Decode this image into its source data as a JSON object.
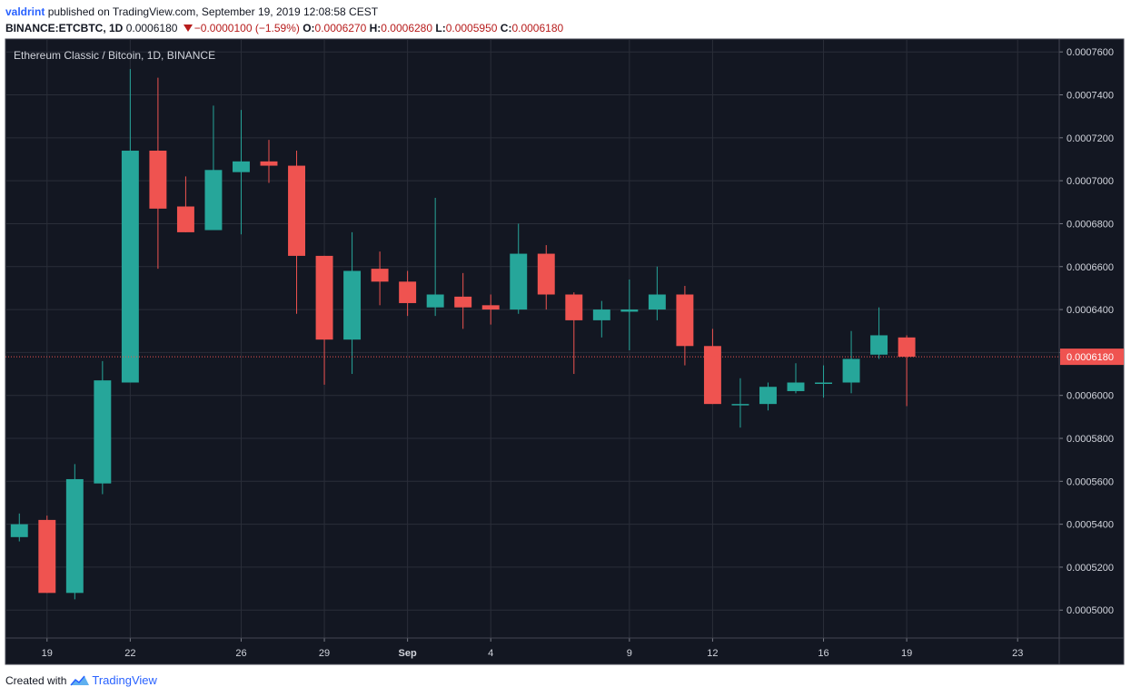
{
  "header": {
    "user": "valdrint",
    "published_text": "published on TradingView.com, September 19, 2019 12:08:58 CEST",
    "symbol": "BINANCE:ETCBTC, 1D",
    "last_price": "0.0006180",
    "change": "−0.0000100 (−1.59%)",
    "o_label": "O:",
    "o_value": "0.0006270",
    "h_label": "H:",
    "h_value": "0.0006280",
    "l_label": "L:",
    "l_value": "0.0005950",
    "c_label": "C:",
    "c_value": "0.0006180"
  },
  "footer": {
    "created_with": "Created with",
    "brand": "TradingView"
  },
  "chart_data": {
    "type": "candlestick",
    "title": "Ethereum Classic / Bitcoin, 1D, BINANCE",
    "colors": {
      "background": "#131722",
      "grid": "#2a2e39",
      "up": "#26a69a",
      "down": "#ef5350",
      "text": "#d1d4dc",
      "price_line": "#ef5350"
    },
    "ylim": [
      0.000487,
      0.000766
    ],
    "y_ticks": [
      "0.0005000",
      "0.0005200",
      "0.0005400",
      "0.0005600",
      "0.0005800",
      "0.0006000",
      "0.0006200",
      "0.0006400",
      "0.0006600",
      "0.0006800",
      "0.0007000",
      "0.0007200",
      "0.0007400",
      "0.0007600"
    ],
    "y_tick_values": [
      0.0005,
      0.00052,
      0.00054,
      0.00056,
      0.00058,
      0.0006,
      0.00062,
      0.00064,
      0.00066,
      0.00068,
      0.0007,
      0.00072,
      0.00074,
      0.00076
    ],
    "x_ticks": [
      {
        "label": "19",
        "date": "2019-08-19"
      },
      {
        "label": "22",
        "date": "2019-08-22"
      },
      {
        "label": "26",
        "date": "2019-08-26"
      },
      {
        "label": "29",
        "date": "2019-08-29"
      },
      {
        "label": "Sep",
        "date": "2019-09-01"
      },
      {
        "label": "4",
        "date": "2019-09-04"
      },
      {
        "label": "9",
        "date": "2019-09-09"
      },
      {
        "label": "12",
        "date": "2019-09-12"
      },
      {
        "label": "16",
        "date": "2019-09-16"
      },
      {
        "label": "19",
        "date": "2019-09-19"
      },
      {
        "label": "23",
        "date": "2019-09-23"
      }
    ],
    "x_range": [
      "2019-08-18",
      "2019-09-24"
    ],
    "current_price": 0.000618,
    "current_price_label": "0.0006180",
    "candles": [
      {
        "date": "2019-08-18",
        "open": 0.000534,
        "high": 0.000545,
        "low": 0.000532,
        "close": 0.00054
      },
      {
        "date": "2019-08-19",
        "open": 0.000542,
        "high": 0.000544,
        "low": 0.000508,
        "close": 0.000508
      },
      {
        "date": "2019-08-20",
        "open": 0.000508,
        "high": 0.000568,
        "low": 0.000505,
        "close": 0.000561
      },
      {
        "date": "2019-08-21",
        "open": 0.000559,
        "high": 0.000616,
        "low": 0.000554,
        "close": 0.000607
      },
      {
        "date": "2019-08-22",
        "open": 0.000606,
        "high": 0.000752,
        "low": 0.000606,
        "close": 0.000714
      },
      {
        "date": "2019-08-23",
        "open": 0.000714,
        "high": 0.000748,
        "low": 0.000659,
        "close": 0.000687
      },
      {
        "date": "2019-08-24",
        "open": 0.000688,
        "high": 0.000702,
        "low": 0.000676,
        "close": 0.000676
      },
      {
        "date": "2019-08-25",
        "open": 0.000677,
        "high": 0.000735,
        "low": 0.000677,
        "close": 0.000705
      },
      {
        "date": "2019-08-26",
        "open": 0.000704,
        "high": 0.000733,
        "low": 0.000675,
        "close": 0.000709
      },
      {
        "date": "2019-08-27",
        "open": 0.000709,
        "high": 0.000719,
        "low": 0.000699,
        "close": 0.000707
      },
      {
        "date": "2019-08-28",
        "open": 0.000707,
        "high": 0.000714,
        "low": 0.000638,
        "close": 0.000665
      },
      {
        "date": "2019-08-29",
        "open": 0.000665,
        "high": 0.000665,
        "low": 0.000605,
        "close": 0.000626
      },
      {
        "date": "2019-08-30",
        "open": 0.000626,
        "high": 0.000676,
        "low": 0.00061,
        "close": 0.000658
      },
      {
        "date": "2019-08-31",
        "open": 0.000659,
        "high": 0.000667,
        "low": 0.000642,
        "close": 0.000653
      },
      {
        "date": "2019-09-01",
        "open": 0.000653,
        "high": 0.000658,
        "low": 0.000637,
        "close": 0.000643
      },
      {
        "date": "2019-09-02",
        "open": 0.000641,
        "high": 0.000692,
        "low": 0.000637,
        "close": 0.000647
      },
      {
        "date": "2019-09-03",
        "open": 0.000646,
        "high": 0.000657,
        "low": 0.000631,
        "close": 0.000641
      },
      {
        "date": "2019-09-04",
        "open": 0.000642,
        "high": 0.000647,
        "low": 0.000633,
        "close": 0.00064
      },
      {
        "date": "2019-09-05",
        "open": 0.00064,
        "high": 0.00068,
        "low": 0.000638,
        "close": 0.000666
      },
      {
        "date": "2019-09-06",
        "open": 0.000666,
        "high": 0.00067,
        "low": 0.00064,
        "close": 0.000647
      },
      {
        "date": "2019-09-07",
        "open": 0.000647,
        "high": 0.000648,
        "low": 0.00061,
        "close": 0.000635
      },
      {
        "date": "2019-09-08",
        "open": 0.000635,
        "high": 0.000644,
        "low": 0.000627,
        "close": 0.00064
      },
      {
        "date": "2019-09-09",
        "open": 0.000639,
        "high": 0.000654,
        "low": 0.000621,
        "close": 0.00064
      },
      {
        "date": "2019-09-10",
        "open": 0.00064,
        "high": 0.00066,
        "low": 0.000635,
        "close": 0.000647
      },
      {
        "date": "2019-09-11",
        "open": 0.000647,
        "high": 0.000651,
        "low": 0.000614,
        "close": 0.000623
      },
      {
        "date": "2019-09-12",
        "open": 0.000623,
        "high": 0.000631,
        "low": 0.000596,
        "close": 0.000596
      },
      {
        "date": "2019-09-13",
        "open": 0.000596,
        "high": 0.000608,
        "low": 0.000585,
        "close": 0.000596
      },
      {
        "date": "2019-09-14",
        "open": 0.000596,
        "high": 0.000606,
        "low": 0.000593,
        "close": 0.000604
      },
      {
        "date": "2019-09-15",
        "open": 0.000602,
        "high": 0.000615,
        "low": 0.000601,
        "close": 0.000606
      },
      {
        "date": "2019-09-16",
        "open": 0.000606,
        "high": 0.000614,
        "low": 0.000599,
        "close": 0.000606
      },
      {
        "date": "2019-09-17",
        "open": 0.000606,
        "high": 0.00063,
        "low": 0.000601,
        "close": 0.000617
      },
      {
        "date": "2019-09-18",
        "open": 0.000619,
        "high": 0.000641,
        "low": 0.000617,
        "close": 0.000628
      },
      {
        "date": "2019-09-19",
        "open": 0.000627,
        "high": 0.000628,
        "low": 0.000595,
        "close": 0.000618
      }
    ]
  }
}
